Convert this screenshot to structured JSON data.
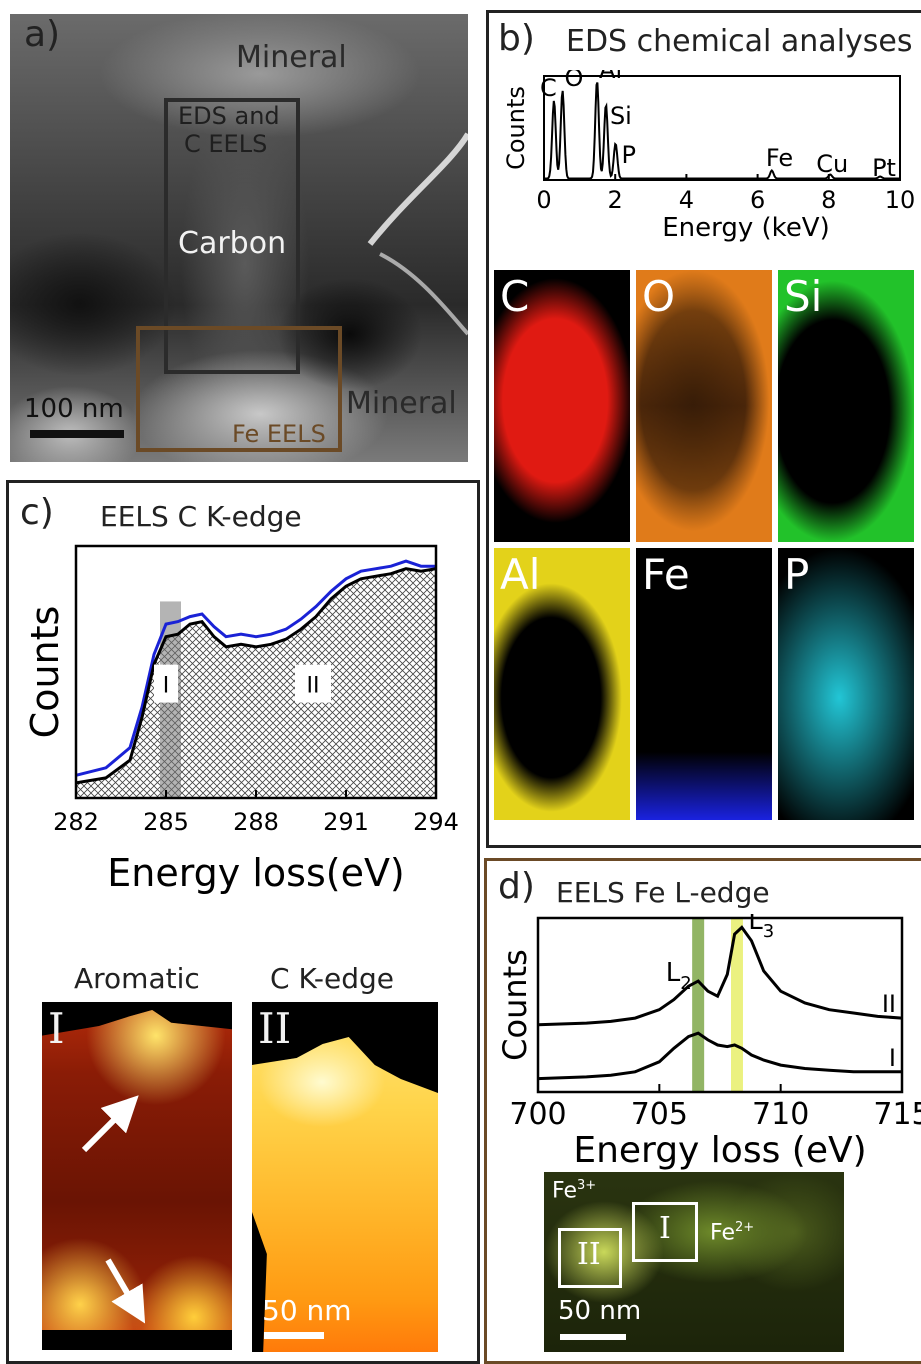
{
  "panel_a": {
    "letter": "a)",
    "label_mineral_top": "Mineral",
    "label_eds_line1": "EDS and",
    "label_eds_line2": "C EELS",
    "label_carbon": "Carbon",
    "label_mineral_bottom": "Mineral",
    "label_fe_eels": "Fe EELS",
    "scalebar": "100 nm",
    "box_eds_color": "#2b2b2b",
    "box_fe_color": "#6b4a26"
  },
  "panel_b": {
    "letter": "b)",
    "title": "EDS chemical analyses",
    "maps": [
      {
        "label": "C",
        "color": "#e01a12"
      },
      {
        "label": "O",
        "color": "#e07b1a"
      },
      {
        "label": "Si",
        "color": "#22c22a"
      },
      {
        "label": "Al",
        "color": "#e3d21a"
      },
      {
        "label": "Fe",
        "color": "#1a22e0"
      },
      {
        "label": "P",
        "color": "#22c6d6"
      }
    ]
  },
  "panel_c": {
    "letter": "c)",
    "title": "EELS C K-edge",
    "map_I_title": "Aromatic",
    "map_II_title": "C K-edge",
    "map_I_label": "I",
    "map_II_label": "II",
    "scalebar": "50 nm"
  },
  "panel_d": {
    "letter": "d)",
    "title": "EELS Fe L-edge",
    "label_fe3": "Fe",
    "label_fe3_sup": "3+",
    "label_fe2": "Fe",
    "label_fe2_sup": "2+",
    "box_I": "I",
    "box_II": "II",
    "scalebar": "50 nm"
  },
  "chart_data": [
    {
      "id": "eds",
      "type": "line",
      "title": "",
      "xlabel": "Energy (keV)",
      "ylabel": "Counts",
      "xlim": [
        0,
        10
      ],
      "xticks": [
        0,
        2,
        4,
        6,
        8,
        10
      ],
      "peaks": [
        {
          "x": 0.28,
          "h": 0.78,
          "label": "C"
        },
        {
          "x": 0.52,
          "h": 0.88,
          "label": "O"
        },
        {
          "x": 1.49,
          "h": 0.98,
          "label": "Al"
        },
        {
          "x": 1.74,
          "h": 0.74,
          "label": "Si"
        },
        {
          "x": 2.01,
          "h": 0.35,
          "label": "P"
        },
        {
          "x": 6.4,
          "h": 0.08,
          "label": "Fe"
        },
        {
          "x": 8.04,
          "h": 0.04,
          "label": "Cu"
        },
        {
          "x": 9.44,
          "h": 0.02,
          "label": "Pt"
        }
      ],
      "line_color": "#000000"
    },
    {
      "id": "c_kedge",
      "type": "area",
      "xlabel": "Energy loss(eV)",
      "ylabel": "Counts",
      "xlim": [
        282,
        294
      ],
      "ylim": [
        0,
        1
      ],
      "xticks": [
        282,
        285,
        288,
        291,
        294
      ],
      "highlight_window": [
        284.8,
        285.5
      ],
      "region_labels": [
        {
          "text": "I",
          "x": 285.0,
          "y": 0.45
        },
        {
          "text": "II",
          "x": 289.7,
          "y": 0.45
        }
      ],
      "series": [
        {
          "name": "",
          "color": "#1a22d6",
          "x": [
            282,
            283,
            283.8,
            284.2,
            284.6,
            285.0,
            285.4,
            285.8,
            286.2,
            286.6,
            287.0,
            287.5,
            288.0,
            288.5,
            289.0,
            289.5,
            290.0,
            290.5,
            291.0,
            291.5,
            292.0,
            292.5,
            293.0,
            293.5,
            294.0
          ],
          "y": [
            0.09,
            0.12,
            0.2,
            0.36,
            0.57,
            0.69,
            0.7,
            0.72,
            0.73,
            0.68,
            0.64,
            0.65,
            0.64,
            0.65,
            0.67,
            0.71,
            0.76,
            0.82,
            0.87,
            0.9,
            0.91,
            0.92,
            0.94,
            0.92,
            0.92
          ]
        },
        {
          "name": "",
          "color": "#000000",
          "x": [
            282,
            283,
            283.8,
            284.2,
            284.6,
            285.0,
            285.4,
            285.8,
            286.2,
            286.6,
            287.0,
            287.5,
            288.0,
            288.5,
            289.0,
            289.5,
            290.0,
            290.5,
            291.0,
            291.5,
            292.0,
            292.5,
            293.0,
            293.5,
            294.0
          ],
          "y": [
            0.06,
            0.08,
            0.15,
            0.32,
            0.53,
            0.64,
            0.65,
            0.69,
            0.7,
            0.64,
            0.6,
            0.61,
            0.6,
            0.61,
            0.63,
            0.67,
            0.72,
            0.79,
            0.84,
            0.87,
            0.88,
            0.89,
            0.91,
            0.9,
            0.91
          ]
        }
      ]
    },
    {
      "id": "fe_ledge",
      "type": "line",
      "xlabel": "Energy loss (eV)",
      "ylabel": "Counts",
      "xlim": [
        700,
        715
      ],
      "ylim": [
        0,
        1
      ],
      "xticks": [
        700,
        705,
        710,
        715
      ],
      "bands": [
        {
          "x": 706.6,
          "color": "#7fa84a"
        },
        {
          "x": 708.2,
          "color": "#e8ee6a"
        }
      ],
      "peak_labels": [
        {
          "text": "L",
          "sub": "2",
          "x": 705.8,
          "y": 0.66
        },
        {
          "text": "L",
          "sub": "3",
          "x": 709.2,
          "y": 0.97
        }
      ],
      "series": [
        {
          "name": "II",
          "x": [
            700,
            702,
            703,
            704,
            705,
            705.6,
            706.2,
            706.6,
            707.0,
            707.4,
            707.8,
            708.1,
            708.4,
            708.8,
            709.3,
            710.0,
            711,
            712,
            713,
            714,
            715
          ],
          "y": [
            0.4,
            0.41,
            0.42,
            0.44,
            0.49,
            0.55,
            0.63,
            0.66,
            0.6,
            0.57,
            0.7,
            0.94,
            0.98,
            0.9,
            0.72,
            0.6,
            0.53,
            0.49,
            0.47,
            0.45,
            0.44
          ]
        },
        {
          "name": "I",
          "x": [
            700,
            702,
            703,
            704,
            705,
            705.6,
            706.2,
            706.6,
            707.0,
            707.4,
            707.8,
            708.1,
            708.4,
            708.8,
            709.3,
            710.0,
            711,
            712,
            713,
            714,
            715
          ],
          "y": [
            0.08,
            0.09,
            0.1,
            0.12,
            0.18,
            0.26,
            0.33,
            0.35,
            0.31,
            0.28,
            0.27,
            0.28,
            0.26,
            0.22,
            0.19,
            0.16,
            0.14,
            0.13,
            0.12,
            0.12,
            0.12
          ]
        }
      ]
    }
  ]
}
